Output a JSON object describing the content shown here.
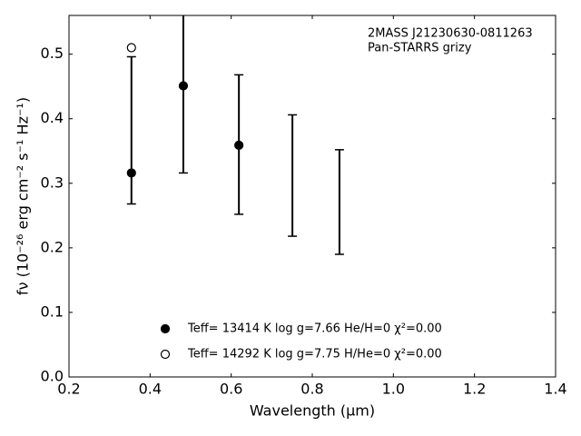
{
  "chart_data": {
    "type": "scatter",
    "x": [
      0.354,
      0.482,
      0.619,
      0.751,
      0.867
    ],
    "observed": [
      0.382,
      0.451,
      0.36,
      0.312,
      0.271
    ],
    "errors": [
      0.114,
      0.135,
      0.108,
      0.094,
      0.081
    ],
    "series": [
      {
        "name": "Teff= 13414 K  log g=7.66  He/H=0  χ²=0.00",
        "marker": "filled",
        "color": "#000000",
        "values": [
          0.316,
          0.451,
          0.359,
          null,
          null
        ]
      },
      {
        "name": "Teff= 14292 K  log g=7.75  H/He=0  χ²=0.00",
        "marker": "open",
        "color": "#000000",
        "values": [
          0.51,
          null,
          null,
          null,
          null
        ]
      }
    ],
    "annotations": [
      "2MASS J21230630-0811263",
      "Pan-STARRS grizy"
    ],
    "x_label": "Wavelength (μm)",
    "y_label": "fν (10⁻²⁶ erg cm⁻² s⁻¹ Hz⁻¹)",
    "xlim": [
      0.2,
      1.4
    ],
    "ylim": [
      0,
      0.56
    ],
    "xticks": [
      0.2,
      0.4,
      0.6,
      0.8,
      {
        "value": 1,
        "label": "1.0"
      },
      1.2,
      1.4
    ],
    "yticks": [
      {
        "value": 0,
        "label": "0.0"
      },
      0.1,
      0.2,
      0.3,
      0.4,
      0.5
    ]
  }
}
